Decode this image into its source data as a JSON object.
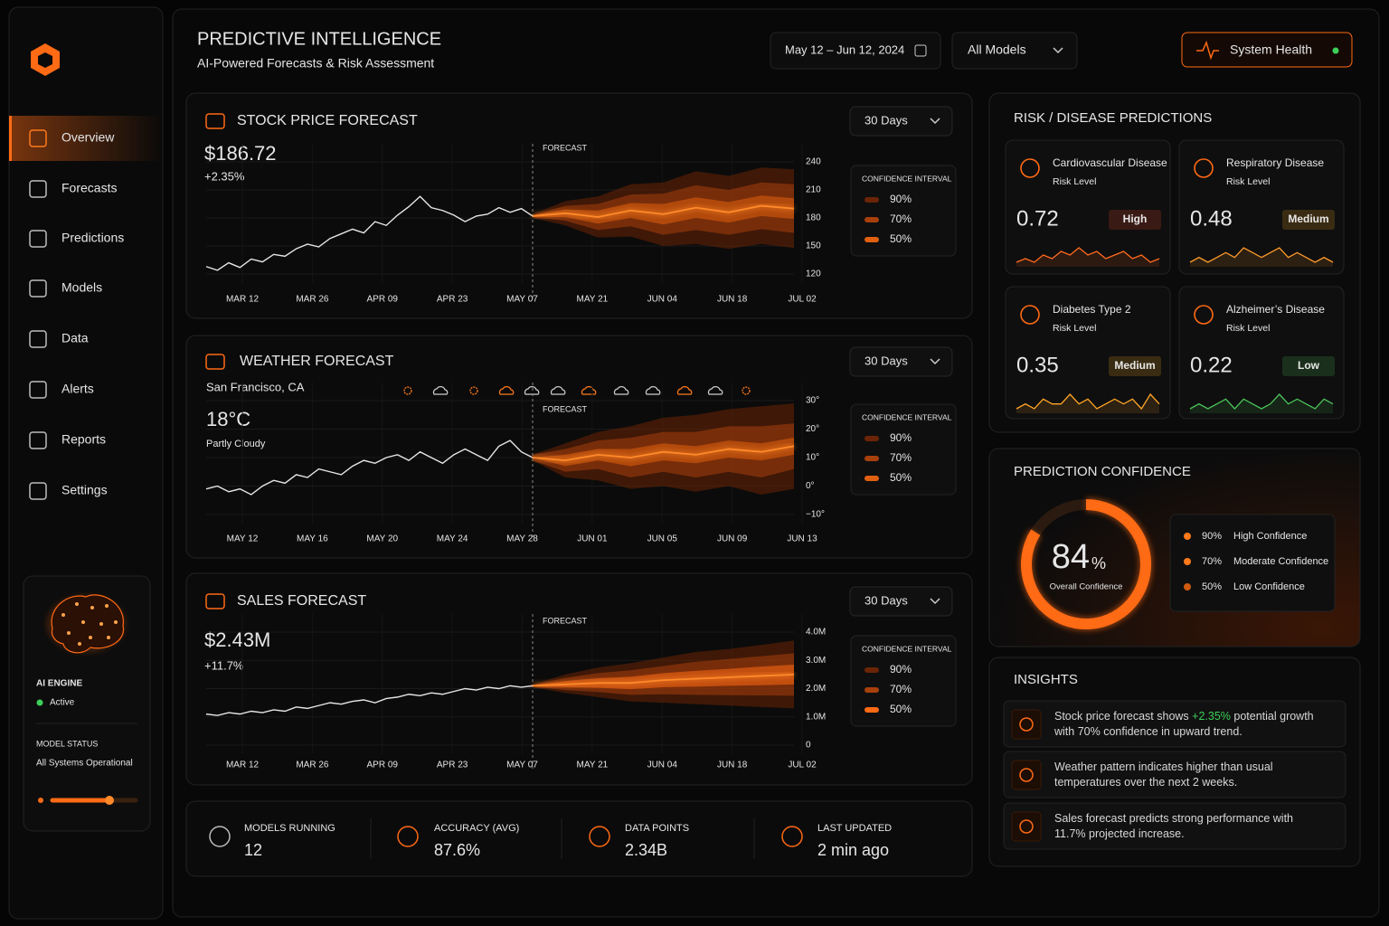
{
  "header": {
    "title": "PREDICTIVE INTELLIGENCE",
    "subtitle": "AI-Powered Forecasts & Risk Assessment",
    "date_range": "May 12 – Jun 12, 2024",
    "model_filter": "All Models",
    "system_health": "System Health"
  },
  "sidebar": {
    "nav": [
      "Overview",
      "Forecasts",
      "Predictions",
      "Models",
      "Data",
      "Alerts",
      "Reports",
      "Settings"
    ],
    "engine": {
      "title": "AI ENGINE",
      "status": "Active",
      "model_status_label": "MODEL STATUS",
      "model_status": "All Systems Operational"
    }
  },
  "chart_data": [
    {
      "type": "line",
      "title": "STOCK PRICE FORECAST",
      "value": "$186.72",
      "change": "+2.35%",
      "range": "30 Days",
      "forecast_label": "FORECAST",
      "legend_title": "CONFIDENCE INTERVAL",
      "categories": [
        "MAR 12",
        "MAR 26",
        "APR 09",
        "APR 23",
        "MAY 07",
        "MAY 21",
        "JUN 04",
        "JUN 18",
        "JUL 02"
      ],
      "ylim": [
        120,
        240
      ],
      "yticks": [
        240,
        210,
        180,
        150,
        120
      ],
      "history": {
        "color": "#e6e6e6",
        "values": [
          128,
          124,
          132,
          127,
          136,
          133,
          141,
          139,
          147,
          152,
          149,
          158,
          163,
          168,
          164,
          176,
          172,
          183,
          192,
          203,
          191,
          188,
          183,
          176,
          182,
          184,
          191,
          186,
          190,
          182
        ]
      },
      "forecast": {
        "color": "#ff8a2a",
        "values": [
          182,
          185,
          181,
          188,
          184,
          191,
          186,
          193,
          190
        ]
      },
      "bands": [
        {
          "label": "90%",
          "color": "#6b2406",
          "upper": [
            184,
            198,
            203,
            216,
            218,
            230,
            225,
            234,
            232
          ],
          "lower": [
            180,
            172,
            159,
            160,
            150,
            152,
            147,
            152,
            148
          ]
        },
        {
          "label": "70%",
          "color": "#a8400c",
          "upper": [
            183,
            193,
            195,
            205,
            206,
            215,
            210,
            218,
            216
          ],
          "lower": [
            181,
            177,
            167,
            171,
            162,
            167,
            162,
            168,
            164
          ]
        },
        {
          "label": "50%",
          "color": "#e0600f",
          "upper": [
            183,
            189,
            188,
            196,
            195,
            202,
            197,
            204,
            201
          ],
          "lower": [
            181,
            181,
            174,
            180,
            173,
            180,
            175,
            182,
            179
          ]
        }
      ]
    },
    {
      "type": "line",
      "title": "WEATHER FORECAST",
      "location": "San Francisco, CA",
      "value": "18°C",
      "condition": "Partly Cloudy",
      "range": "30 Days",
      "forecast_label": "FORECAST",
      "legend_title": "CONFIDENCE INTERVAL",
      "categories": [
        "MAY 12",
        "MAY 16",
        "MAY 20",
        "MAY 24",
        "MAY 28",
        "JUN 01",
        "JUN 05",
        "JUN 09",
        "JUN 13"
      ],
      "ylim": [
        -10,
        30
      ],
      "yticks": [
        {
          "value": 30,
          "label": "30°"
        },
        {
          "value": 20,
          "label": "20°"
        },
        {
          "value": 10,
          "label": "10°"
        },
        {
          "value": 0,
          "label": "0°"
        },
        {
          "value": -10,
          "label": "−10°"
        }
      ],
      "history": {
        "color": "#e6e6e6",
        "values": [
          -1,
          0,
          -2,
          -1,
          -3,
          0,
          2,
          1,
          4,
          3,
          6,
          5,
          4,
          7,
          9,
          8,
          10,
          11,
          9,
          12,
          10,
          8,
          11,
          13,
          11,
          9,
          14,
          16,
          12,
          10
        ]
      },
      "forecast": {
        "color": "#ff8a2a",
        "values": [
          10,
          9,
          11,
          10,
          12,
          11,
          13,
          12,
          14
        ]
      },
      "bands": [
        {
          "label": "90%",
          "color": "#6b2406",
          "upper": [
            11,
            15,
            19,
            21,
            24,
            25,
            27,
            28,
            29
          ],
          "lower": [
            9,
            3,
            2,
            -1,
            0,
            -2,
            0,
            -3,
            -1
          ]
        },
        {
          "label": "70%",
          "color": "#a8400c",
          "upper": [
            11,
            13,
            16,
            17,
            19,
            19,
            21,
            21,
            22
          ],
          "lower": [
            9,
            5,
            6,
            3,
            5,
            3,
            5,
            3,
            6
          ]
        },
        {
          "label": "50%",
          "color": "#e0600f",
          "upper": [
            10,
            11,
            13,
            13,
            15,
            14,
            16,
            15,
            17
          ],
          "lower": [
            10,
            7,
            9,
            7,
            9,
            8,
            10,
            9,
            11
          ]
        }
      ]
    },
    {
      "type": "line",
      "title": "SALES FORECAST",
      "value": "$2.43M",
      "change": "+11.7%",
      "range": "30 Days",
      "forecast_label": "FORECAST",
      "legend_title": "CONFIDENCE INTERVAL",
      "categories": [
        "MAR 12",
        "MAR 26",
        "APR 09",
        "APR 23",
        "MAY 07",
        "MAY 21",
        "JUN 04",
        "JUN 18",
        "JUL 02"
      ],
      "ylim": [
        0,
        4000000
      ],
      "yticks": [
        {
          "value": 4000000,
          "label": "4.0M"
        },
        {
          "value": 3000000,
          "label": "3.0M"
        },
        {
          "value": 2000000,
          "label": "2.0M"
        },
        {
          "value": 1000000,
          "label": "1.0M"
        },
        0
      ],
      "history": {
        "color": "#e6e6e6",
        "values": [
          1100000,
          1050000,
          1150000,
          1100000,
          1200000,
          1150000,
          1250000,
          1200000,
          1350000,
          1300000,
          1400000,
          1500000,
          1450000,
          1550000,
          1600000,
          1500000,
          1650000,
          1700000,
          1800000,
          1750000,
          1850000,
          1800000,
          1900000,
          2000000,
          1950000,
          2050000,
          2000000,
          2100000,
          2050000,
          2100000
        ]
      },
      "forecast": {
        "color": "#ff8a2a",
        "values": [
          2100000,
          2150000,
          2200000,
          2200000,
          2300000,
          2350000,
          2400000,
          2450000,
          2500000
        ]
      },
      "bands": [
        {
          "label": "90%",
          "color": "#6b2406",
          "upper": [
            2150000,
            2500000,
            2750000,
            2900000,
            3100000,
            3300000,
            3400000,
            3550000,
            3700000
          ],
          "lower": [
            2050000,
            1850000,
            1700000,
            1550000,
            1500000,
            1450000,
            1400000,
            1350000,
            1300000
          ]
        },
        {
          "label": "70%",
          "color": "#a8400c",
          "upper": [
            2130000,
            2380000,
            2550000,
            2650000,
            2800000,
            2950000,
            3050000,
            3150000,
            3250000
          ],
          "lower": [
            2070000,
            1950000,
            1880000,
            1780000,
            1800000,
            1780000,
            1770000,
            1760000,
            1750000
          ]
        },
        {
          "label": "50%",
          "color": "#ff6a14",
          "upper": [
            2120000,
            2270000,
            2370000,
            2420000,
            2550000,
            2630000,
            2700000,
            2780000,
            2850000
          ],
          "lower": [
            2080000,
            2050000,
            2030000,
            1980000,
            2050000,
            2070000,
            2100000,
            2120000,
            2150000
          ]
        }
      ]
    }
  ],
  "stats": [
    {
      "label": "MODELS RUNNING",
      "value": "12"
    },
    {
      "label": "ACCURACY (AVG)",
      "value": "87.6%"
    },
    {
      "label": "DATA POINTS",
      "value": "2.34B"
    },
    {
      "label": "LAST UPDATED",
      "value": "2 min ago"
    }
  ],
  "risk": {
    "title": "RISK / DISEASE PREDICTIONS",
    "cards": [
      {
        "name": "Cardiovascular Disease",
        "sub": "Risk Level",
        "value": 0.72,
        "level": "High",
        "color": "#ff6a1f",
        "badge_color": "#ff4d2a",
        "trend": [
          3,
          4,
          3,
          5,
          4,
          6,
          5,
          7,
          5,
          6,
          4,
          5,
          6,
          4,
          5,
          3,
          4
        ]
      },
      {
        "name": "Respiratory Disease",
        "sub": "Risk Level",
        "value": 0.48,
        "level": "Medium",
        "color": "#ff9a2a",
        "badge_color": "#ffb020",
        "trend": [
          3,
          4,
          3,
          4,
          5,
          4,
          6,
          5,
          4,
          5,
          6,
          4,
          5,
          4,
          3,
          4,
          3
        ]
      },
      {
        "name": "Diabetes Type 2",
        "sub": "Risk Level",
        "value": 0.35,
        "level": "Medium",
        "color": "#ffa526",
        "badge_color": "#ffb020",
        "trend": [
          3,
          4,
          3,
          5,
          4,
          4,
          6,
          4,
          5,
          3,
          4,
          5,
          4,
          5,
          3,
          6,
          4
        ]
      },
      {
        "name": "Alzheimer’s Disease",
        "sub": "Risk Level",
        "value": 0.22,
        "level": "Low",
        "color": "#4cc25a",
        "badge_color": "#4cc25a",
        "trend": [
          3,
          4,
          3,
          4,
          5,
          3,
          5,
          4,
          3,
          4,
          6,
          4,
          5,
          4,
          3,
          5,
          4
        ]
      }
    ]
  },
  "confidence": {
    "title": "PREDICTION CONFIDENCE",
    "value": 84,
    "unit": "%",
    "caption": "Overall Confidence",
    "lim": [
      0,
      100
    ],
    "legend": [
      {
        "label": "90%",
        "text": "High Confidence",
        "color": "#ff7a1a"
      },
      {
        "label": "70%",
        "text": "Moderate Confidence",
        "color": "#ff7a1a"
      },
      {
        "label": "50%",
        "text": "Low Confidence",
        "color": "#d05a10"
      }
    ]
  },
  "insights": {
    "title": "INSIGHTS",
    "items": [
      {
        "lines": [
          [
            "Stock price forecast shows ",
            "+2.35%",
            " potential growth"
          ],
          [
            "with 70% confidence in upward trend."
          ]
        ]
      },
      {
        "lines": [
          [
            "Weather pattern indicates higher than usual"
          ],
          [
            "temperatures over the next 2 weeks."
          ]
        ]
      },
      {
        "lines": [
          [
            "Sales forecast predicts strong performance with"
          ],
          [
            "11.7% projected increase."
          ]
        ]
      }
    ]
  }
}
